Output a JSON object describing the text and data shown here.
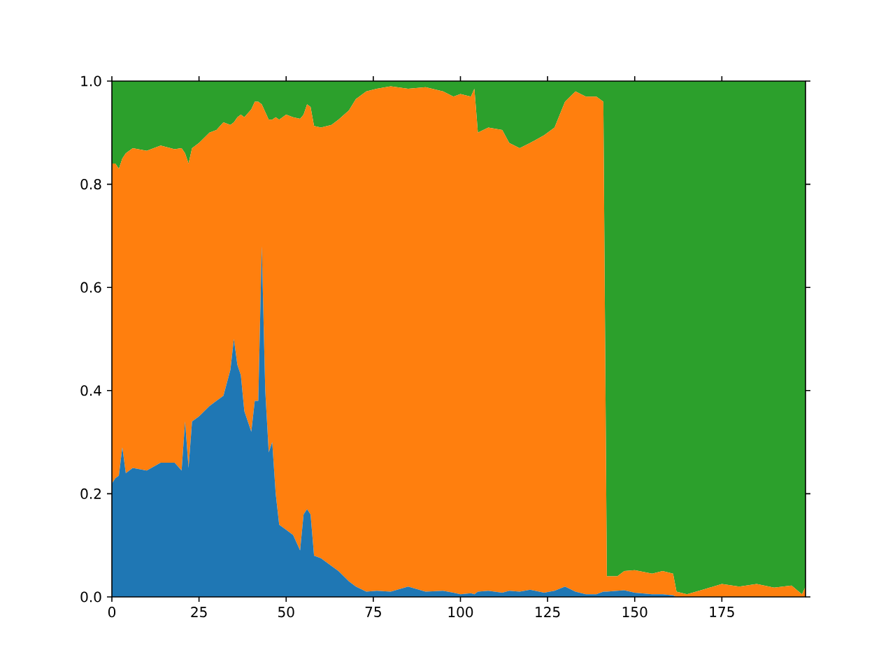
{
  "chart_data": {
    "type": "area",
    "stacked": true,
    "x": [
      0,
      1,
      2,
      3,
      4,
      6,
      10,
      14,
      18,
      20,
      21,
      22,
      23,
      25,
      28,
      30,
      32,
      34,
      35,
      36,
      37,
      38,
      40,
      41,
      42,
      43,
      44,
      45,
      46,
      47,
      48,
      50,
      52,
      54,
      55,
      56,
      57,
      58,
      60,
      63,
      65,
      68,
      70,
      73,
      76,
      80,
      85,
      90,
      95,
      98,
      100,
      103,
      104,
      105,
      108,
      112,
      114,
      117,
      120,
      124,
      127,
      130,
      133,
      136,
      139,
      141,
      142,
      145,
      147,
      150,
      155,
      158,
      161,
      162,
      165,
      170,
      175,
      180,
      185,
      190,
      195,
      198,
      199
    ],
    "series": [
      {
        "color": "#1f77b4",
        "values": [
          0.22,
          0.23,
          0.235,
          0.29,
          0.24,
          0.25,
          0.245,
          0.26,
          0.26,
          0.245,
          0.34,
          0.25,
          0.34,
          0.35,
          0.37,
          0.38,
          0.39,
          0.44,
          0.5,
          0.45,
          0.43,
          0.36,
          0.32,
          0.38,
          0.38,
          0.68,
          0.4,
          0.28,
          0.3,
          0.2,
          0.14,
          0.13,
          0.12,
          0.09,
          0.16,
          0.17,
          0.16,
          0.08,
          0.075,
          0.06,
          0.05,
          0.03,
          0.02,
          0.01,
          0.012,
          0.01,
          0.02,
          0.01,
          0.012,
          0.008,
          0.005,
          0.007,
          0.005,
          0.01,
          0.012,
          0.008,
          0.012,
          0.01,
          0.014,
          0.008,
          0.012,
          0.02,
          0.01,
          0.005,
          0.005,
          0.01,
          0.01,
          0.012,
          0.013,
          0.008,
          0.005,
          0.005,
          0.003,
          0,
          0,
          0,
          0,
          0,
          0,
          0,
          0,
          0,
          0
        ]
      },
      {
        "color": "#ff7f0e",
        "values": [
          0.62,
          0.61,
          0.595,
          0.56,
          0.62,
          0.62,
          0.62,
          0.615,
          0.608,
          0.625,
          0.52,
          0.59,
          0.53,
          0.53,
          0.53,
          0.525,
          0.53,
          0.475,
          0.42,
          0.48,
          0.505,
          0.57,
          0.625,
          0.58,
          0.58,
          0.275,
          0.54,
          0.645,
          0.625,
          0.73,
          0.785,
          0.805,
          0.81,
          0.837,
          0.775,
          0.785,
          0.79,
          0.833,
          0.835,
          0.855,
          0.875,
          0.913,
          0.945,
          0.97,
          0.973,
          0.98,
          0.965,
          0.978,
          0.968,
          0.962,
          0.97,
          0.963,
          0.98,
          0.89,
          0.898,
          0.897,
          0.868,
          0.86,
          0.866,
          0.887,
          0.898,
          0.94,
          0.97,
          0.965,
          0.965,
          0.95,
          0.03,
          0.028,
          0.037,
          0.044,
          0.04,
          0.045,
          0.042,
          0.01,
          0.005,
          0.015,
          0.025,
          0.02,
          0.025,
          0.018,
          0.022,
          0.005,
          0.02
        ]
      },
      {
        "color": "#2ca02c",
        "values": [
          0.16,
          0.16,
          0.17,
          0.15,
          0.14,
          0.13,
          0.135,
          0.125,
          0.132,
          0.13,
          0.14,
          0.16,
          0.13,
          0.12,
          0.1,
          0.095,
          0.08,
          0.085,
          0.08,
          0.07,
          0.065,
          0.07,
          0.055,
          0.04,
          0.04,
          0.045,
          0.06,
          0.075,
          0.075,
          0.07,
          0.075,
          0.065,
          0.07,
          0.073,
          0.065,
          0.045,
          0.05,
          0.087,
          0.09,
          0.085,
          0.075,
          0.057,
          0.035,
          0.02,
          0.015,
          0.01,
          0.015,
          0.012,
          0.02,
          0.03,
          0.025,
          0.03,
          0.015,
          0.1,
          0.09,
          0.095,
          0.12,
          0.13,
          0.12,
          0.105,
          0.09,
          0.04,
          0.02,
          0.03,
          0.03,
          0.04,
          0.96,
          0.96,
          0.95,
          0.948,
          0.955,
          0.95,
          0.955,
          0.99,
          0.995,
          0.985,
          0.975,
          0.98,
          0.975,
          0.982,
          0.978,
          0.995,
          0.98
        ]
      }
    ],
    "xlim": [
      0,
      199
    ],
    "ylim": [
      0,
      1
    ],
    "xticks": [
      0,
      25,
      50,
      75,
      100,
      125,
      150,
      175
    ],
    "yticks": [
      {
        "value": 0,
        "label": "0.0"
      },
      {
        "value": 0.2,
        "label": "0.2"
      },
      {
        "value": 0.4,
        "label": "0.4"
      },
      {
        "value": 0.6,
        "label": "0.6"
      },
      {
        "value": 0.8,
        "label": "0.8"
      },
      {
        "value": 1,
        "label": "1.0"
      }
    ]
  }
}
